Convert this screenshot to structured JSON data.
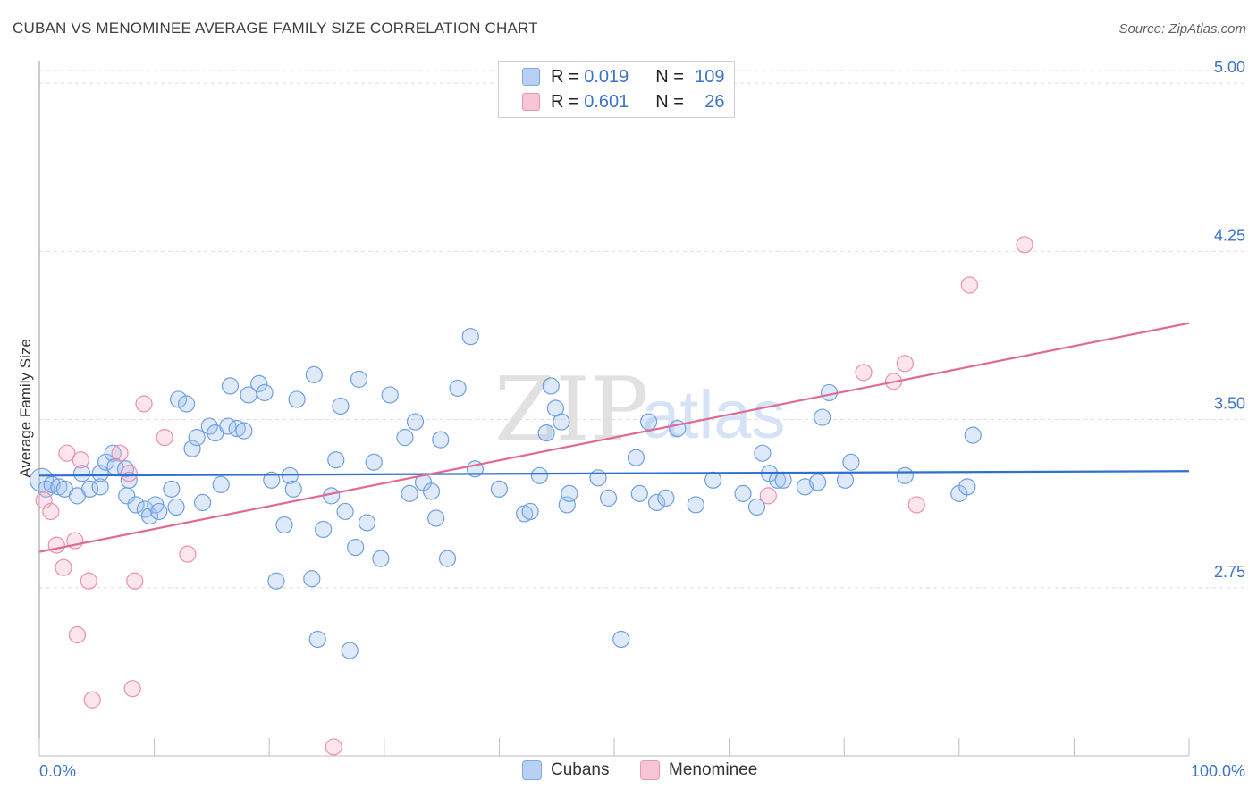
{
  "title": "CUBAN VS MENOMINEE AVERAGE FAMILY SIZE CORRELATION CHART",
  "source": "Source: ZipAtlas.com",
  "watermark": {
    "zip": "ZIP",
    "atlas": "atlas"
  },
  "legend": {
    "rows": [
      {
        "r_label": "R = ",
        "r_value": "0.019",
        "n_label": "N = ",
        "n_value": "109",
        "fill": "#b7d0f3",
        "stroke": "#7fa8e0"
      },
      {
        "r_label": "R = ",
        "r_value": "0.601",
        "n_label": "N = ",
        "n_value": "26",
        "fill": "#f7c6d5",
        "stroke": "#e994b0"
      }
    ]
  },
  "bottom_legend": [
    {
      "label": "Cubans",
      "fill": "#b7d0f3",
      "stroke": "#7fa8e0"
    },
    {
      "label": "Menominee",
      "fill": "#f7c6d5",
      "stroke": "#e994b0"
    }
  ],
  "chart_data": {
    "type": "scatter",
    "title": "CUBAN VS MENOMINEE AVERAGE FAMILY SIZE CORRELATION CHART",
    "xlabel": "",
    "ylabel": "Average Family Size",
    "xlim": [
      0,
      100
    ],
    "ylim": [
      2.0,
      5.1
    ],
    "x_tick_labels": [
      "0.0%",
      "100.0%"
    ],
    "y_ticks": [
      2.75,
      3.5,
      4.25,
      5.0
    ],
    "y_tick_labels": [
      "2.75",
      "3.50",
      "4.25",
      "5.00"
    ],
    "grid": true,
    "legend_position": "top-center",
    "series": [
      {
        "name": "Cubans",
        "color": "#6f9fe0",
        "trend": {
          "x": [
            0,
            100
          ],
          "y": [
            3.25,
            3.27
          ],
          "color": "#2f6fd0"
        },
        "points": [
          [
            0.2,
            3.23
          ],
          [
            0.6,
            3.19
          ],
          [
            1.1,
            3.21
          ],
          [
            1.7,
            3.2
          ],
          [
            2.2,
            3.19
          ],
          [
            3.3,
            3.16
          ],
          [
            3.7,
            3.26
          ],
          [
            4.4,
            3.19
          ],
          [
            5.3,
            3.2
          ],
          [
            5.3,
            3.26
          ],
          [
            5.8,
            3.31
          ],
          [
            6.4,
            3.35
          ],
          [
            6.6,
            3.29
          ],
          [
            7.5,
            3.28
          ],
          [
            7.6,
            3.16
          ],
          [
            7.8,
            3.23
          ],
          [
            8.4,
            3.12
          ],
          [
            9.2,
            3.1
          ],
          [
            9.6,
            3.07
          ],
          [
            10.1,
            3.12
          ],
          [
            10.4,
            3.09
          ],
          [
            11.5,
            3.19
          ],
          [
            11.9,
            3.11
          ],
          [
            12.1,
            3.59
          ],
          [
            12.8,
            3.57
          ],
          [
            13.3,
            3.37
          ],
          [
            13.7,
            3.42
          ],
          [
            14.2,
            3.13
          ],
          [
            14.8,
            3.47
          ],
          [
            15.3,
            3.44
          ],
          [
            15.8,
            3.21
          ],
          [
            16.4,
            3.47
          ],
          [
            16.6,
            3.65
          ],
          [
            17.2,
            3.46
          ],
          [
            17.8,
            3.45
          ],
          [
            18.2,
            3.61
          ],
          [
            19.1,
            3.66
          ],
          [
            19.6,
            3.62
          ],
          [
            20.2,
            3.23
          ],
          [
            20.6,
            2.78
          ],
          [
            21.3,
            3.03
          ],
          [
            21.8,
            3.25
          ],
          [
            22.1,
            3.19
          ],
          [
            22.4,
            3.59
          ],
          [
            23.7,
            2.79
          ],
          [
            23.9,
            3.7
          ],
          [
            24.2,
            2.52
          ],
          [
            24.7,
            3.01
          ],
          [
            25.4,
            3.16
          ],
          [
            25.8,
            3.32
          ],
          [
            26.2,
            3.56
          ],
          [
            26.6,
            3.09
          ],
          [
            27.0,
            2.47
          ],
          [
            27.5,
            2.93
          ],
          [
            27.8,
            3.68
          ],
          [
            28.5,
            3.04
          ],
          [
            29.1,
            3.31
          ],
          [
            29.7,
            2.88
          ],
          [
            30.5,
            3.61
          ],
          [
            31.8,
            3.42
          ],
          [
            32.2,
            3.17
          ],
          [
            32.7,
            3.49
          ],
          [
            33.4,
            3.22
          ],
          [
            34.1,
            3.18
          ],
          [
            34.5,
            3.06
          ],
          [
            34.9,
            3.41
          ],
          [
            35.5,
            2.88
          ],
          [
            36.4,
            3.64
          ],
          [
            37.5,
            3.87
          ],
          [
            37.9,
            3.28
          ],
          [
            40.0,
            3.19
          ],
          [
            42.2,
            3.08
          ],
          [
            42.7,
            3.09
          ],
          [
            43.5,
            3.25
          ],
          [
            44.1,
            3.44
          ],
          [
            44.5,
            3.65
          ],
          [
            44.9,
            3.55
          ],
          [
            45.4,
            3.49
          ],
          [
            45.9,
            3.12
          ],
          [
            46.1,
            3.17
          ],
          [
            48.6,
            3.24
          ],
          [
            49.5,
            3.15
          ],
          [
            50.6,
            2.52
          ],
          [
            51.9,
            3.33
          ],
          [
            52.2,
            3.17
          ],
          [
            53.0,
            3.49
          ],
          [
            53.7,
            3.13
          ],
          [
            54.5,
            3.15
          ],
          [
            55.5,
            3.46
          ],
          [
            57.1,
            3.12
          ],
          [
            58.6,
            3.23
          ],
          [
            61.2,
            3.17
          ],
          [
            62.4,
            3.11
          ],
          [
            62.9,
            3.35
          ],
          [
            63.5,
            3.26
          ],
          [
            64.2,
            3.23
          ],
          [
            64.7,
            3.23
          ],
          [
            66.6,
            3.2
          ],
          [
            67.7,
            3.22
          ],
          [
            68.1,
            3.51
          ],
          [
            68.7,
            3.62
          ],
          [
            70.1,
            3.23
          ],
          [
            70.6,
            3.31
          ],
          [
            75.3,
            3.25
          ],
          [
            80.0,
            3.17
          ],
          [
            80.7,
            3.2
          ],
          [
            81.2,
            3.43
          ]
        ]
      },
      {
        "name": "Menominee",
        "color": "#ec8fae",
        "trend": {
          "x": [
            0,
            100
          ],
          "y": [
            2.91,
            3.93
          ],
          "color": "#e06a94"
        },
        "points": [
          [
            0.4,
            3.14
          ],
          [
            1.0,
            3.09
          ],
          [
            1.5,
            2.94
          ],
          [
            2.1,
            2.84
          ],
          [
            2.4,
            3.35
          ],
          [
            3.1,
            2.96
          ],
          [
            3.3,
            2.54
          ],
          [
            3.6,
            3.32
          ],
          [
            4.3,
            2.78
          ],
          [
            4.6,
            2.25
          ],
          [
            7.0,
            3.35
          ],
          [
            7.8,
            3.26
          ],
          [
            8.1,
            2.3
          ],
          [
            8.3,
            2.78
          ],
          [
            9.1,
            3.57
          ],
          [
            10.9,
            3.42
          ],
          [
            12.9,
            2.9
          ],
          [
            25.6,
            2.04
          ],
          [
            63.4,
            3.16
          ],
          [
            71.7,
            3.71
          ],
          [
            74.3,
            3.67
          ],
          [
            75.3,
            3.75
          ],
          [
            76.3,
            3.12
          ],
          [
            80.9,
            4.1
          ],
          [
            85.7,
            4.28
          ]
        ]
      }
    ]
  }
}
